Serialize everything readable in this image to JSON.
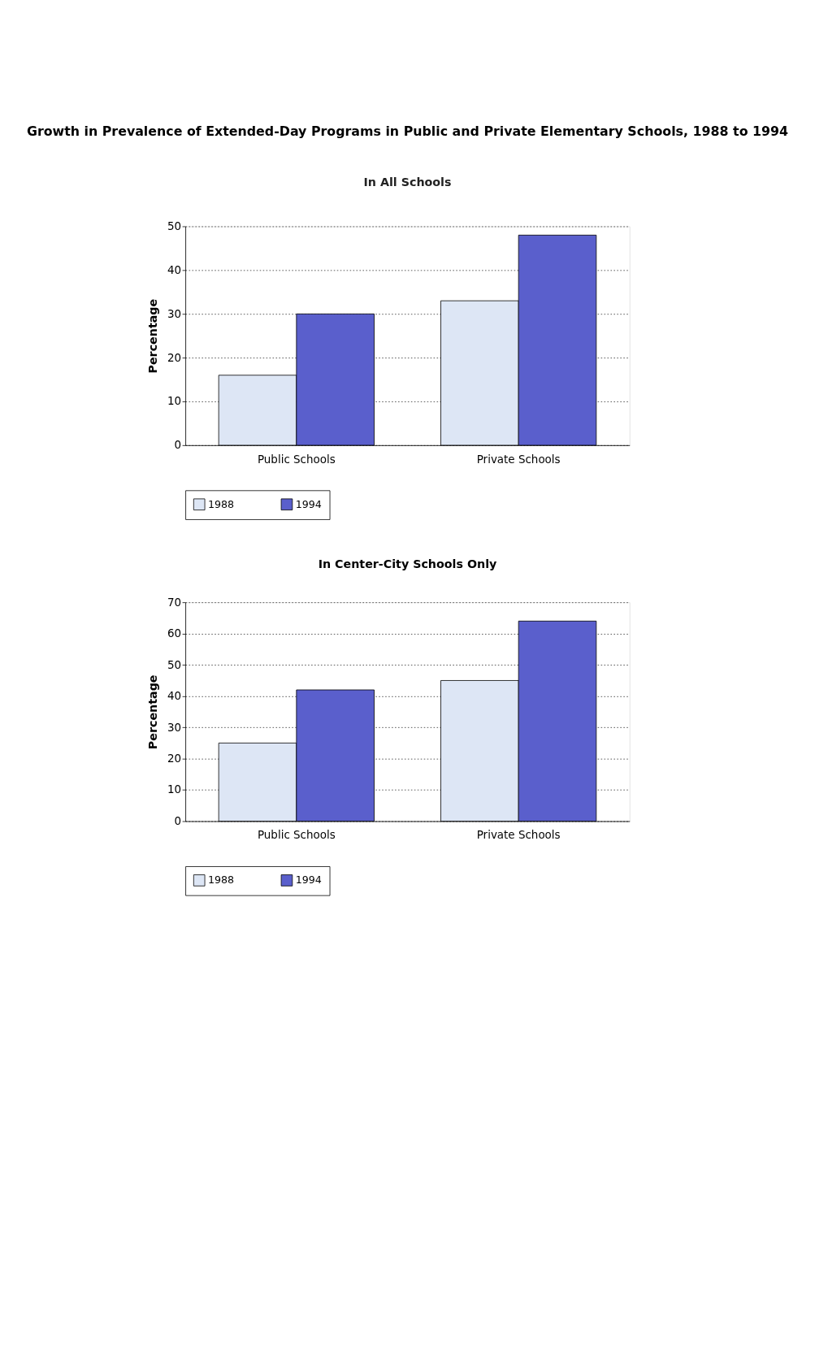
{
  "chart_data": [
    {
      "type": "bar",
      "title": "Growth in Prevalence of Extended-Day Programs in Public and Private Elementary Schools, 1988 to 1994",
      "subtitle": "In All Schools",
      "ylabel": "Percentage",
      "categories": [
        "Public Schools",
        "Private Schools"
      ],
      "series": [
        {
          "name": "1988",
          "color": "#dde6f5",
          "values": [
            16,
            33
          ]
        },
        {
          "name": "1994",
          "color": "#5a5fcc",
          "values": [
            30,
            48
          ]
        }
      ],
      "ylim": [
        0,
        50
      ],
      "yticks": [
        0,
        10,
        20,
        30,
        40,
        50
      ],
      "grid": "y",
      "legend": "bottom"
    },
    {
      "type": "bar",
      "title": "In Center-City Schools Only",
      "ylabel": "Percentage",
      "categories": [
        "Public Schools",
        "Private Schools"
      ],
      "series": [
        {
          "name": "1988",
          "color": "#dde6f5",
          "values": [
            25,
            45
          ]
        },
        {
          "name": "1994",
          "color": "#5a5fcc",
          "values": [
            42,
            64
          ]
        }
      ],
      "ylim": [
        0,
        70
      ],
      "yticks": [
        0,
        10,
        20,
        30,
        40,
        50,
        60,
        70
      ],
      "grid": "y",
      "legend": "bottom"
    }
  ]
}
